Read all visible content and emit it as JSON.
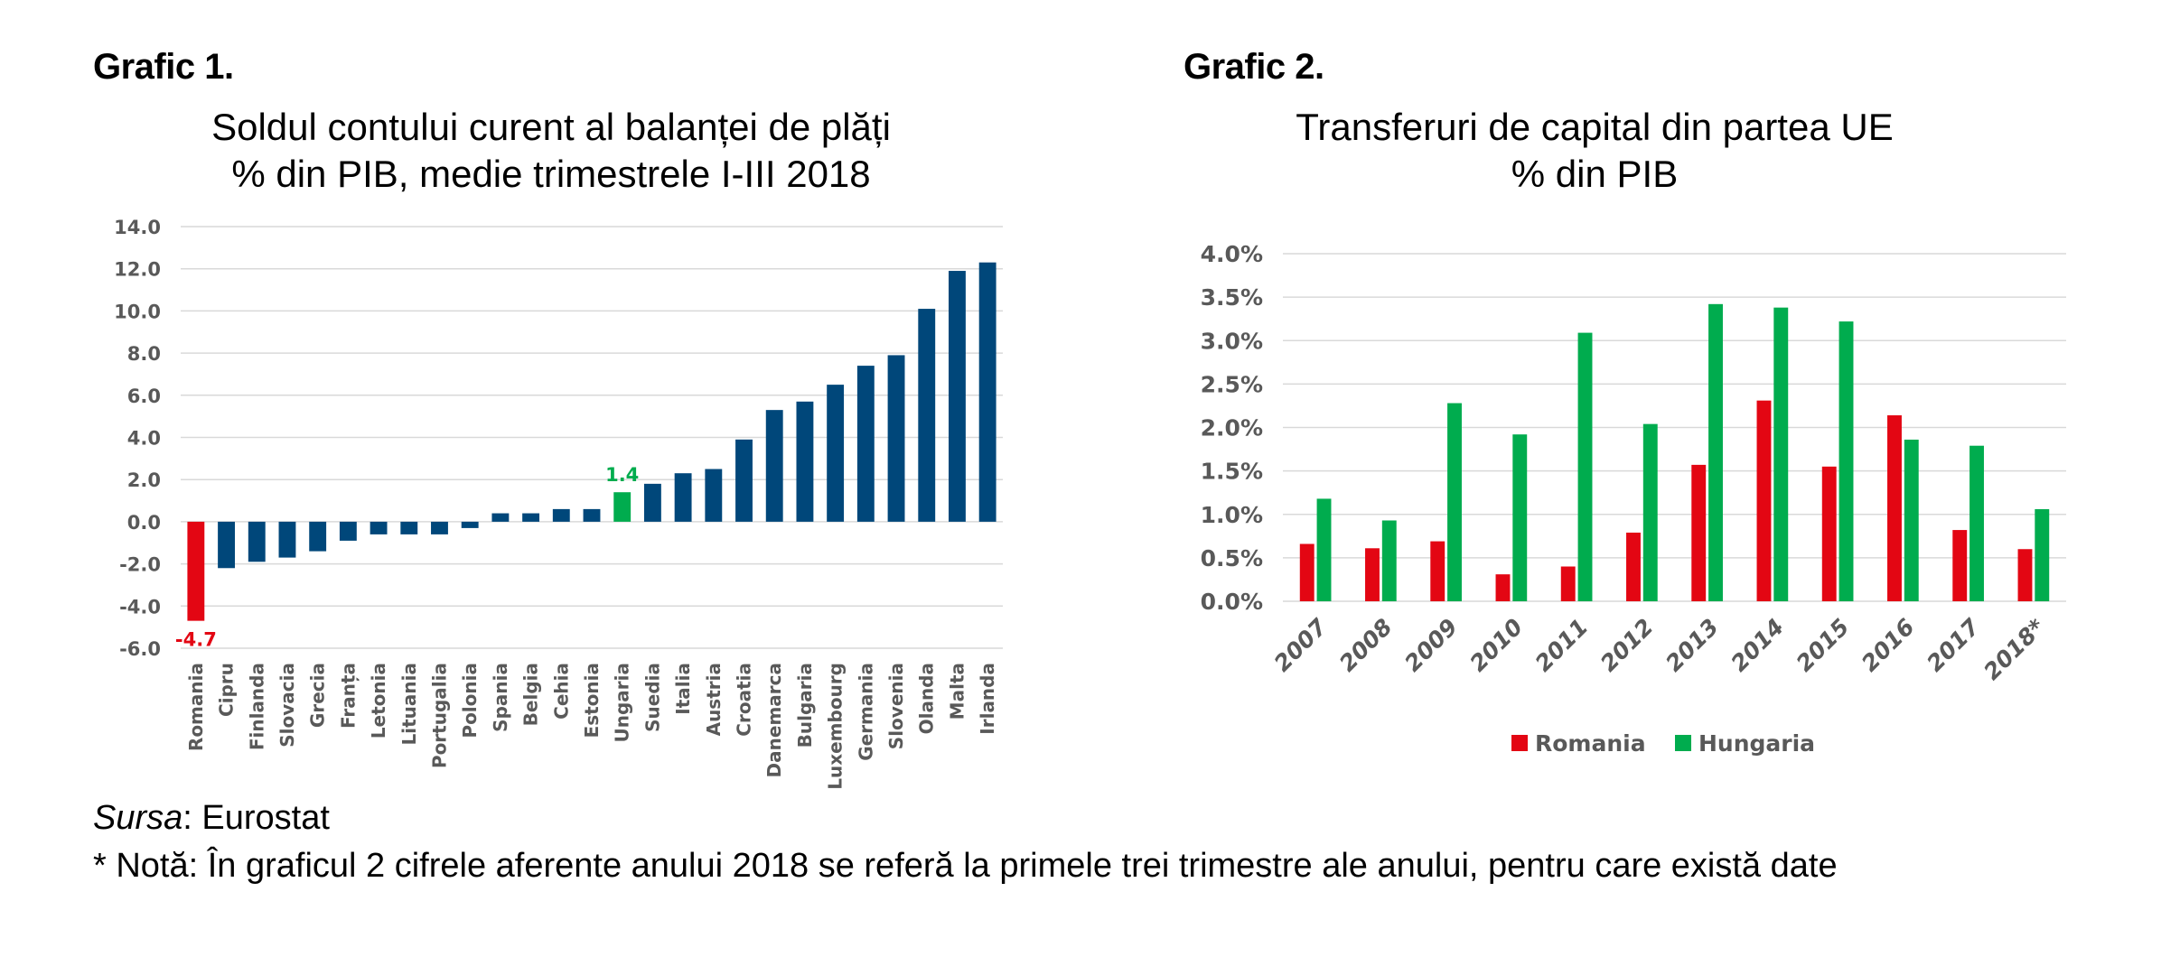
{
  "chart1": {
    "label": "Grafic 1.",
    "title_line1": "Soldul contului curent al balanței de plăți",
    "title_line2": "% din PIB, medie trimestrele I-III 2018"
  },
  "chart2": {
    "label": "Grafic 2.",
    "title_line1": "Transferuri de capital din partea UE",
    "title_line2": "% din PIB"
  },
  "footer": {
    "source_label": "Sursa",
    "source_value": ": Eurostat",
    "note": "* Notă: În graficul 2 cifrele aferente anului 2018 se referă la primele trei trimestre ale anului, pentru care există date"
  },
  "colors": {
    "default_bar": "#00477A",
    "romania": "#E30613",
    "hungary": "#00AC4E",
    "axis_text": "#595959",
    "gridline": "#D9D9D9"
  },
  "chart_data": [
    {
      "type": "bar",
      "title": "Soldul contului curent al balanței de plăți — % din PIB, medie trimestrele I-III 2018",
      "xlabel": "",
      "ylabel": "",
      "ylim": [
        -6.0,
        14.0
      ],
      "yticks": [
        "14.0",
        "12.0",
        "10.0",
        "8.0",
        "6.0",
        "4.0",
        "2.0",
        "0.0",
        "-2.0",
        "-4.0",
        "-6.0"
      ],
      "ytick_values": [
        14,
        12,
        10,
        8,
        6,
        4,
        2,
        0,
        -2,
        -4,
        -6
      ],
      "grid": true,
      "categories": [
        "Romania",
        "Cipru",
        "Finlanda",
        "Slovacia",
        "Grecia",
        "Franța",
        "Letonia",
        "Lituania",
        "Portugalia",
        "Polonia",
        "Spania",
        "Belgia",
        "Cehia",
        "Estonia",
        "Ungaria",
        "Suedia",
        "Italia",
        "Austria",
        "Croatia",
        "Danemarca",
        "Bulgaria",
        "Luxembourg",
        "Germania",
        "Slovenia",
        "Olanda",
        "Malta",
        "Irlanda"
      ],
      "values": [
        -4.7,
        -2.2,
        -1.9,
        -1.7,
        -1.4,
        -0.9,
        -0.6,
        -0.6,
        -0.6,
        -0.3,
        0.4,
        0.4,
        0.6,
        0.6,
        1.4,
        1.8,
        2.3,
        2.5,
        3.9,
        5.3,
        5.7,
        6.5,
        7.4,
        7.9,
        10.1,
        11.9,
        12.3
      ],
      "highlights": {
        "Romania": "romania",
        "Ungaria": "hungary"
      },
      "data_labels": [
        {
          "category": "Romania",
          "text": "-4.7"
        },
        {
          "category": "Ungaria",
          "text": "1.4"
        }
      ]
    },
    {
      "type": "bar",
      "title": "Transferuri de capital din partea UE — % din PIB",
      "xlabel": "",
      "ylabel": "",
      "ylim": [
        0.0,
        4.0
      ],
      "yticks": [
        "4.0%",
        "3.5%",
        "3.0%",
        "2.5%",
        "2.0%",
        "1.5%",
        "1.0%",
        "0.5%",
        "0.0%"
      ],
      "ytick_values": [
        4.0,
        3.5,
        3.0,
        2.5,
        2.0,
        1.5,
        1.0,
        0.5,
        0.0
      ],
      "grid": true,
      "legend": "bottom-center",
      "categories": [
        "2007",
        "2008",
        "2009",
        "2010",
        "2011",
        "2012",
        "2013",
        "2014",
        "2015",
        "2016",
        "2017",
        "2018*"
      ],
      "series": [
        {
          "name": "Romania",
          "color_key": "romania",
          "values": [
            0.66,
            0.61,
            0.69,
            0.31,
            0.4,
            0.79,
            1.57,
            2.31,
            1.55,
            2.14,
            0.82,
            0.6
          ]
        },
        {
          "name": "Hungaria",
          "color_key": "hungary",
          "values": [
            1.18,
            0.93,
            2.28,
            1.92,
            3.09,
            2.04,
            3.42,
            3.38,
            3.22,
            1.86,
            1.79,
            1.06
          ]
        }
      ]
    }
  ]
}
